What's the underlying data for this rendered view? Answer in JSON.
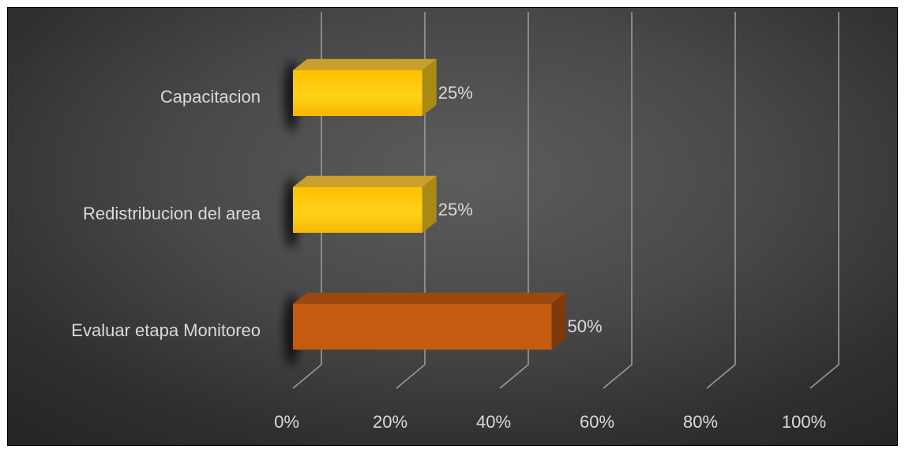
{
  "chart_data": {
    "type": "bar",
    "orientation": "horizontal",
    "style": "3d-clustered-bar",
    "categories": [
      "Evaluar etapa Monitoreo",
      "Redistribucion del area",
      "Capacitacion"
    ],
    "values": [
      50,
      25,
      25
    ],
    "data_labels": [
      "50%",
      "25%",
      "25%"
    ],
    "colors": [
      "#c55a11",
      "#ffc000",
      "#ffc000"
    ],
    "x_ticks": [
      "0%",
      "20%",
      "40%",
      "60%",
      "80%",
      "100%"
    ],
    "xlim": [
      0,
      100
    ],
    "grid": true,
    "legend": "none",
    "background": "#3f3f3f"
  }
}
